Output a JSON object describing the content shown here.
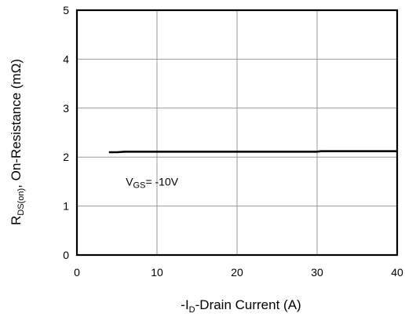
{
  "chart_data": {
    "type": "line",
    "xlabel": {
      "prefix": "-I",
      "sub": "D",
      "suffix": "-Drain Current (A)"
    },
    "ylabel": {
      "prefix": "R",
      "sub": "DS(on)",
      "suffix": ",  On-Resistance (mΩ)"
    },
    "xlim": [
      0,
      40
    ],
    "ylim": [
      0,
      5
    ],
    "x_ticks": [
      0,
      10,
      20,
      30,
      40
    ],
    "y_ticks": [
      0,
      1,
      2,
      3,
      4,
      5
    ],
    "grid": true,
    "annotation": {
      "prefix": "V",
      "sub": "GS",
      "suffix": "= -10V",
      "x": 6,
      "y": 1.5
    },
    "series": [
      {
        "x": [
          4,
          5,
          6,
          10,
          20,
          30,
          30.5,
          40
        ],
        "values": [
          2.1,
          2.1,
          2.11,
          2.11,
          2.11,
          2.11,
          2.12,
          2.12
        ]
      }
    ]
  }
}
